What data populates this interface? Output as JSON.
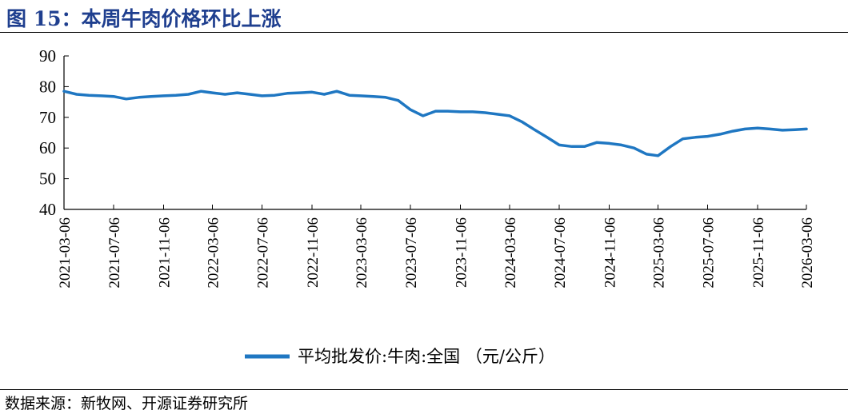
{
  "header": {
    "title": "图 15：本周牛肉价格环比上涨"
  },
  "footer": {
    "source": "数据来源：新牧网、开源证券研究所"
  },
  "colors": {
    "series": "#1f77c2",
    "title": "#1f3f8f"
  },
  "chart_data": {
    "type": "line",
    "ylim": [
      40,
      90
    ],
    "yticks": [
      "90",
      "80",
      "70",
      "60",
      "50",
      "40"
    ],
    "xticks": [
      "2021-03-06",
      "2021-07-06",
      "2021-11-06",
      "2022-03-06",
      "2022-07-06",
      "2022-11-06",
      "2023-03-06",
      "2023-07-06",
      "2023-11-06",
      "2024-03-06",
      "2024-07-06",
      "2024-11-06",
      "2025-03-06",
      "2025-07-06",
      "2025-11-06",
      "2026-03-06"
    ],
    "grid": false,
    "legend_position": "bottom",
    "series": [
      {
        "name": "平均批发价:牛肉:全国 （元/公斤）",
        "x": [
          "2021-03-06",
          "2021-04-06",
          "2021-05-06",
          "2021-06-06",
          "2021-07-06",
          "2021-08-06",
          "2021-09-06",
          "2021-10-06",
          "2021-11-06",
          "2021-12-06",
          "2022-01-06",
          "2022-02-06",
          "2022-03-06",
          "2022-04-06",
          "2022-05-06",
          "2022-06-06",
          "2022-07-06",
          "2022-08-06",
          "2022-09-06",
          "2022-10-06",
          "2022-11-06",
          "2022-12-06",
          "2023-01-06",
          "2023-02-06",
          "2023-03-06",
          "2023-04-06",
          "2023-05-06",
          "2023-06-06",
          "2023-07-06",
          "2023-08-06",
          "2023-09-06",
          "2023-10-06",
          "2023-11-06",
          "2023-12-06",
          "2024-01-06",
          "2024-02-06",
          "2024-03-06",
          "2024-04-06",
          "2024-05-06",
          "2024-06-06",
          "2024-07-06",
          "2024-08-06",
          "2024-09-06",
          "2024-10-06",
          "2024-11-06",
          "2024-12-06",
          "2025-01-06",
          "2025-02-06",
          "2025-03-06",
          "2025-04-06",
          "2025-05-06",
          "2025-06-06",
          "2025-07-06",
          "2025-08-06",
          "2025-09-06",
          "2025-10-06",
          "2025-11-06",
          "2025-12-06",
          "2026-01-06",
          "2026-02-06",
          "2026-03-06"
        ],
        "values": [
          78.5,
          77.5,
          77.2,
          77.0,
          76.8,
          76.0,
          76.5,
          76.8,
          77.0,
          77.2,
          77.5,
          78.5,
          78.0,
          77.5,
          78.0,
          77.5,
          77.0,
          77.2,
          77.8,
          78.0,
          78.2,
          77.5,
          78.5,
          77.2,
          77.0,
          76.8,
          76.5,
          75.5,
          72.5,
          70.5,
          72.0,
          72.0,
          71.8,
          71.8,
          71.5,
          71.0,
          70.5,
          68.5,
          66.0,
          63.5,
          61.0,
          60.5,
          60.5,
          61.8,
          61.5,
          61.0,
          60.0,
          58.0,
          57.5,
          60.5,
          63.0,
          63.5,
          63.8,
          64.5,
          65.5,
          66.2,
          66.5,
          66.2,
          65.8,
          66.0,
          66.2
        ]
      }
    ]
  }
}
